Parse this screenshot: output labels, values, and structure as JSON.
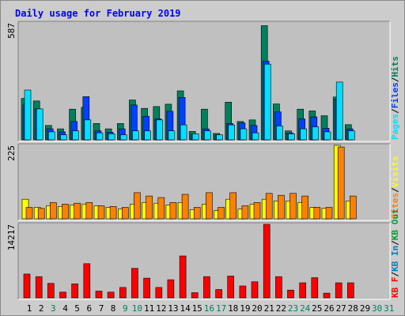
{
  "title": "Daily usage for February 2019",
  "colors": {
    "hits": "#00805c",
    "files": "#0040ff",
    "pages": "#00e0ff",
    "visits": "#ffff00",
    "sites": "#ff8000",
    "kbin": "#0080c0",
    "kbout": "#00a030",
    "kbf": "#ff0000",
    "bg": "#cccccc",
    "plot": "#c0c0c0",
    "text_blue": "#0000ff"
  },
  "chart_data": [
    {
      "type": "bar",
      "panel": "top",
      "ymax_label": "587",
      "ylim": [
        0,
        587
      ],
      "legend": [
        {
          "label": "Pages",
          "color": "#00e0ff"
        },
        {
          "label": "/",
          "color": "#000000"
        },
        {
          "label": "Files",
          "color": "#0040ff"
        },
        {
          "label": "/",
          "color": "#000000"
        },
        {
          "label": "Hits",
          "color": "#00805c"
        }
      ],
      "categories": [
        "1",
        "2",
        "3",
        "4",
        "5",
        "6",
        "7",
        "8",
        "9",
        "10",
        "11",
        "12",
        "13",
        "14",
        "15",
        "16",
        "17",
        "18",
        "19",
        "20",
        "21",
        "22",
        "23",
        "24",
        "25",
        "26",
        "27",
        "28"
      ],
      "series": [
        {
          "name": "Hits",
          "values": [
            208,
            195,
            72,
            55,
            154,
            163,
            82,
            55,
            82,
            200,
            158,
            167,
            179,
            246,
            42,
            154,
            32,
            189,
            92,
            100,
            573,
            180,
            45,
            154,
            145,
            121,
            215,
            76
          ]
        },
        {
          "name": "Files",
          "values": [
            175,
            155,
            55,
            40,
            92,
            217,
            45,
            38,
            55,
            175,
            118,
            105,
            143,
            213,
            28,
            55,
            25,
            82,
            85,
            72,
            395,
            140,
            35,
            105,
            115,
            58,
            205,
            55
          ]
        },
        {
          "name": "Pages",
          "values": [
            250,
            155,
            40,
            25,
            45,
            100,
            35,
            30,
            25,
            45,
            45,
            100,
            45,
            75,
            30,
            45,
            25,
            75,
            55,
            35,
            380,
            70,
            30,
            55,
            65,
            40,
            290,
            45
          ]
        }
      ]
    },
    {
      "type": "bar",
      "panel": "middle",
      "ymax_label": "225",
      "ylim": [
        0,
        225
      ],
      "legend": [
        {
          "label": "Sites",
          "color": "#ff8000"
        },
        {
          "label": "/",
          "color": "#000000"
        },
        {
          "label": "Visits",
          "color": "#ffff00"
        }
      ],
      "categories": [
        "1",
        "2",
        "3",
        "4",
        "5",
        "6",
        "7",
        "8",
        "9",
        "10",
        "11",
        "12",
        "13",
        "14",
        "15",
        "16",
        "17",
        "18",
        "19",
        "20",
        "21",
        "22",
        "23",
        "24",
        "25",
        "26",
        "27",
        "28"
      ],
      "series": [
        {
          "name": "Visits",
          "values": [
            60,
            35,
            40,
            38,
            42,
            45,
            40,
            35,
            30,
            45,
            50,
            48,
            42,
            50,
            28,
            45,
            25,
            60,
            30,
            45,
            60,
            55,
            55,
            50,
            35,
            32,
            225,
            55
          ]
        },
        {
          "name": "Sites",
          "values": [
            35,
            32,
            50,
            45,
            48,
            50,
            40,
            38,
            35,
            80,
            70,
            65,
            50,
            75,
            35,
            80,
            35,
            80,
            40,
            50,
            78,
            72,
            78,
            70,
            35,
            35,
            220,
            70
          ]
        }
      ]
    },
    {
      "type": "bar",
      "panel": "bottom",
      "ymax_label": "14217",
      "ylim": [
        0,
        14217
      ],
      "legend": [
        {
          "label": "KB F",
          "color": "#ff0000"
        },
        {
          "label": "/",
          "color": "#000000"
        },
        {
          "label": "KB In",
          "color": "#0080c0"
        },
        {
          "label": "/",
          "color": "#000000"
        },
        {
          "label": "KB Out",
          "color": "#00a030"
        }
      ],
      "categories": [
        "1",
        "2",
        "3",
        "4",
        "5",
        "6",
        "7",
        "8",
        "9",
        "10",
        "11",
        "12",
        "13",
        "14",
        "15",
        "16",
        "17",
        "18",
        "19",
        "20",
        "21",
        "22",
        "23",
        "24",
        "25",
        "26",
        "27",
        "28"
      ],
      "series": [
        {
          "name": "KB F",
          "values": [
            4600,
            4100,
            2800,
            1100,
            2700,
            6600,
            1300,
            1100,
            2000,
            5700,
            3800,
            2000,
            3500,
            8100,
            1000,
            4100,
            1600,
            4200,
            2300,
            3100,
            14217,
            4100,
            1500,
            2900,
            3900,
            900,
            2900,
            2900
          ]
        }
      ]
    }
  ],
  "x_labels": [
    {
      "text": "1",
      "color": "#000000"
    },
    {
      "text": "2",
      "color": "#000000"
    },
    {
      "text": "3",
      "color": "#00805c"
    },
    {
      "text": "4",
      "color": "#000000"
    },
    {
      "text": "5",
      "color": "#000000"
    },
    {
      "text": "6",
      "color": "#000000"
    },
    {
      "text": "7",
      "color": "#000000"
    },
    {
      "text": "8",
      "color": "#000000"
    },
    {
      "text": "9",
      "color": "#00805c"
    },
    {
      "text": "10",
      "color": "#00805c"
    },
    {
      "text": "11",
      "color": "#000000"
    },
    {
      "text": "12",
      "color": "#000000"
    },
    {
      "text": "13",
      "color": "#000000"
    },
    {
      "text": "14",
      "color": "#000000"
    },
    {
      "text": "15",
      "color": "#000000"
    },
    {
      "text": "16",
      "color": "#00805c"
    },
    {
      "text": "17",
      "color": "#00805c"
    },
    {
      "text": "18",
      "color": "#000000"
    },
    {
      "text": "19",
      "color": "#000000"
    },
    {
      "text": "20",
      "color": "#000000"
    },
    {
      "text": "21",
      "color": "#000000"
    },
    {
      "text": "22",
      "color": "#000000"
    },
    {
      "text": "23",
      "color": "#00805c"
    },
    {
      "text": "24",
      "color": "#00805c"
    },
    {
      "text": "25",
      "color": "#000000"
    },
    {
      "text": "26",
      "color": "#000000"
    },
    {
      "text": "27",
      "color": "#000000"
    },
    {
      "text": "28",
      "color": "#000000"
    },
    {
      "text": "29",
      "color": "#000000"
    },
    {
      "text": "30",
      "color": "#00805c"
    },
    {
      "text": "31",
      "color": "#00805c"
    }
  ]
}
